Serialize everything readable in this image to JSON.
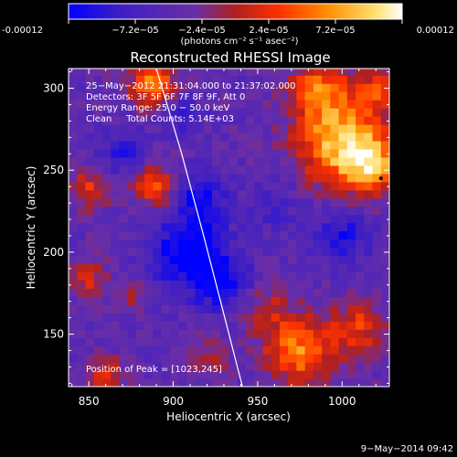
{
  "chart_data": {
    "type": "heatmap",
    "title": "Reconstructed RHESSI Image",
    "xlabel": "Heliocentric X (arcsec)",
    "ylabel": "Heliocentric Y (arcsec)",
    "xlim": [
      838,
      1028
    ],
    "ylim": [
      118,
      312
    ],
    "x_ticks": [
      850,
      900,
      950,
      1000
    ],
    "y_ticks": [
      150,
      200,
      250,
      300
    ],
    "colorbar": {
      "min": -0.00012,
      "max": 0.00012,
      "ticks": [
        "-0.00012",
        "−7.2e−05",
        "−2.4e−05",
        "2.4e−05",
        "7.2e−05",
        "0.00012"
      ],
      "unit_label": "(photons cm⁻² s⁻¹ asec⁻²)",
      "colors": [
        "#0000ff",
        "#3d1ec4",
        "#6a2fa6",
        "#b02020",
        "#ff3000",
        "#ff9000",
        "#ffe070",
        "#ffffff"
      ]
    },
    "annotations": [
      "25−May−2012 21:31:04.000 to 21:37:02.000",
      "Detectors: 3F 5F 6F 7F 8F 9F, Att 0",
      "Energy Range: 25.0 − 50.0 keV",
      "Clean     Total Counts: 5.14E+03"
    ],
    "peak_label": "Position of Peak = [1023,245]",
    "peak": [
      1023,
      245
    ],
    "limb_points": [
      [
        890,
        312
      ],
      [
        905,
        260
      ],
      [
        918,
        210
      ],
      [
        928,
        170
      ],
      [
        938,
        130
      ],
      [
        941,
        118
      ]
    ],
    "sources": [
      {
        "x": 1000,
        "y": 268,
        "amp": 1.25,
        "w": 18
      },
      {
        "x": 1018,
        "y": 252,
        "amp": 0.9,
        "w": 12
      },
      {
        "x": 985,
        "y": 300,
        "amp": 0.8,
        "w": 12
      },
      {
        "x": 1022,
        "y": 300,
        "amp": 0.6,
        "w": 10
      },
      {
        "x": 975,
        "y": 140,
        "amp": 0.95,
        "w": 14
      },
      {
        "x": 1010,
        "y": 155,
        "amp": 0.6,
        "w": 12
      },
      {
        "x": 955,
        "y": 165,
        "amp": 0.45,
        "w": 10
      },
      {
        "x": 890,
        "y": 240,
        "amp": 0.9,
        "w": 8
      },
      {
        "x": 888,
        "y": 303,
        "amp": 1.0,
        "w": 9
      },
      {
        "x": 850,
        "y": 238,
        "amp": 0.6,
        "w": 8
      },
      {
        "x": 850,
        "y": 185,
        "amp": 0.55,
        "w": 7
      },
      {
        "x": 875,
        "y": 175,
        "amp": 0.4,
        "w": 7
      },
      {
        "x": 860,
        "y": 125,
        "amp": 0.5,
        "w": 8
      },
      {
        "x": 920,
        "y": 135,
        "amp": 0.35,
        "w": 8
      },
      {
        "x": 905,
        "y": 285,
        "amp": -0.45,
        "w": 8
      },
      {
        "x": 915,
        "y": 235,
        "amp": -0.6,
        "w": 11
      },
      {
        "x": 910,
        "y": 200,
        "amp": -0.9,
        "w": 16
      },
      {
        "x": 930,
        "y": 180,
        "amp": -0.55,
        "w": 12
      },
      {
        "x": 870,
        "y": 262,
        "amp": -0.5,
        "w": 9
      },
      {
        "x": 1000,
        "y": 210,
        "amp": -0.55,
        "w": 12
      },
      {
        "x": 960,
        "y": 230,
        "amp": -0.35,
        "w": 10
      }
    ]
  },
  "footer": {
    "date": "9−May−2014 09:42"
  }
}
